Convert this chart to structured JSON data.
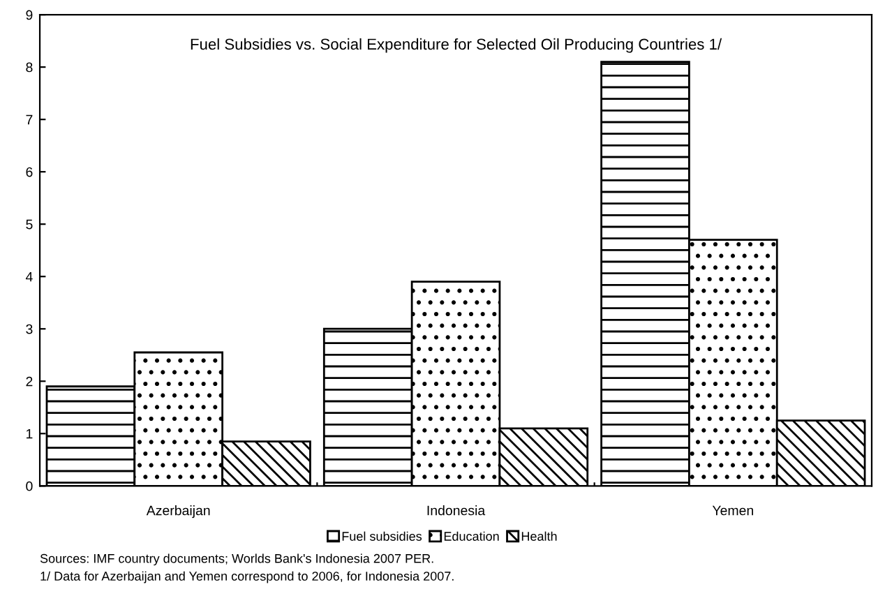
{
  "chart_data": {
    "type": "bar",
    "title": "Fuel Subsidies vs. Social Expenditure for Selected Oil Producing Countries 1/",
    "categories": [
      "Azerbaijan",
      "Indonesia",
      "Yemen"
    ],
    "series": [
      {
        "name": "Fuel subsidies",
        "color": "#000000",
        "values": [
          1.9,
          3.0,
          8.1
        ]
      },
      {
        "name": "Education",
        "color": "#000000",
        "values": [
          2.55,
          3.9,
          4.7
        ]
      },
      {
        "name": "Health",
        "color": "#000000",
        "values": [
          0.85,
          1.1,
          1.25
        ]
      }
    ],
    "ylim": [
      0,
      9
    ],
    "yticks": [
      0,
      1,
      2,
      3,
      4,
      5,
      6,
      7,
      8,
      9
    ],
    "grid": false,
    "legend": "bottom",
    "annotations": [
      "Sources: IMF country documents; Worlds Bank's Indonesia 2007 PER.",
      "1/ Data for Azerbaijan and Yemen correspond to 2006, for Indonesia 2007."
    ]
  }
}
